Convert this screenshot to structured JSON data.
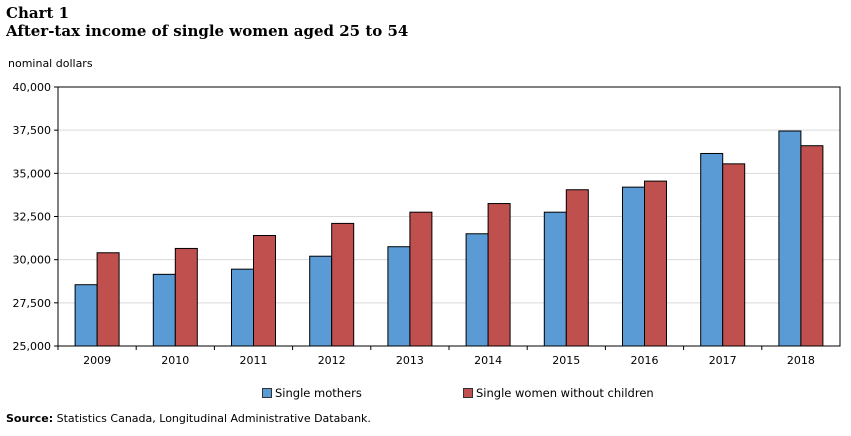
{
  "header": {
    "chart_label": "Chart 1",
    "title": "After-tax income of single  women aged 25 to 54"
  },
  "source": {
    "label": "Source:",
    "text": "Statistics Canada, Longitudinal Administrative Databank."
  },
  "chart_data": {
    "type": "bar",
    "title": "After-tax income of single  women aged 25 to 54",
    "ylabel": "nominal dollars",
    "xlabel": "",
    "ylim": [
      25000,
      40000
    ],
    "yticks": [
      25000,
      27500,
      30000,
      32500,
      35000,
      37500,
      40000
    ],
    "ytick_labels": [
      "25,000",
      "27,500",
      "30,000",
      "32,500",
      "35,000",
      "37,500",
      "40,000"
    ],
    "grid": true,
    "legend_position": "bottom",
    "categories": [
      "2009",
      "2010",
      "2011",
      "2012",
      "2013",
      "2014",
      "2015",
      "2016",
      "2017",
      "2018"
    ],
    "series": [
      {
        "name": "Single mothers",
        "color": "#5b9bd5",
        "values": [
          28550,
          29150,
          29450,
          30200,
          30750,
          31500,
          32750,
          34200,
          36150,
          37450
        ]
      },
      {
        "name": "Single women without children",
        "color": "#c0504d",
        "values": [
          30400,
          30650,
          31400,
          32100,
          32750,
          33250,
          34050,
          34550,
          35550,
          36600
        ]
      }
    ]
  }
}
